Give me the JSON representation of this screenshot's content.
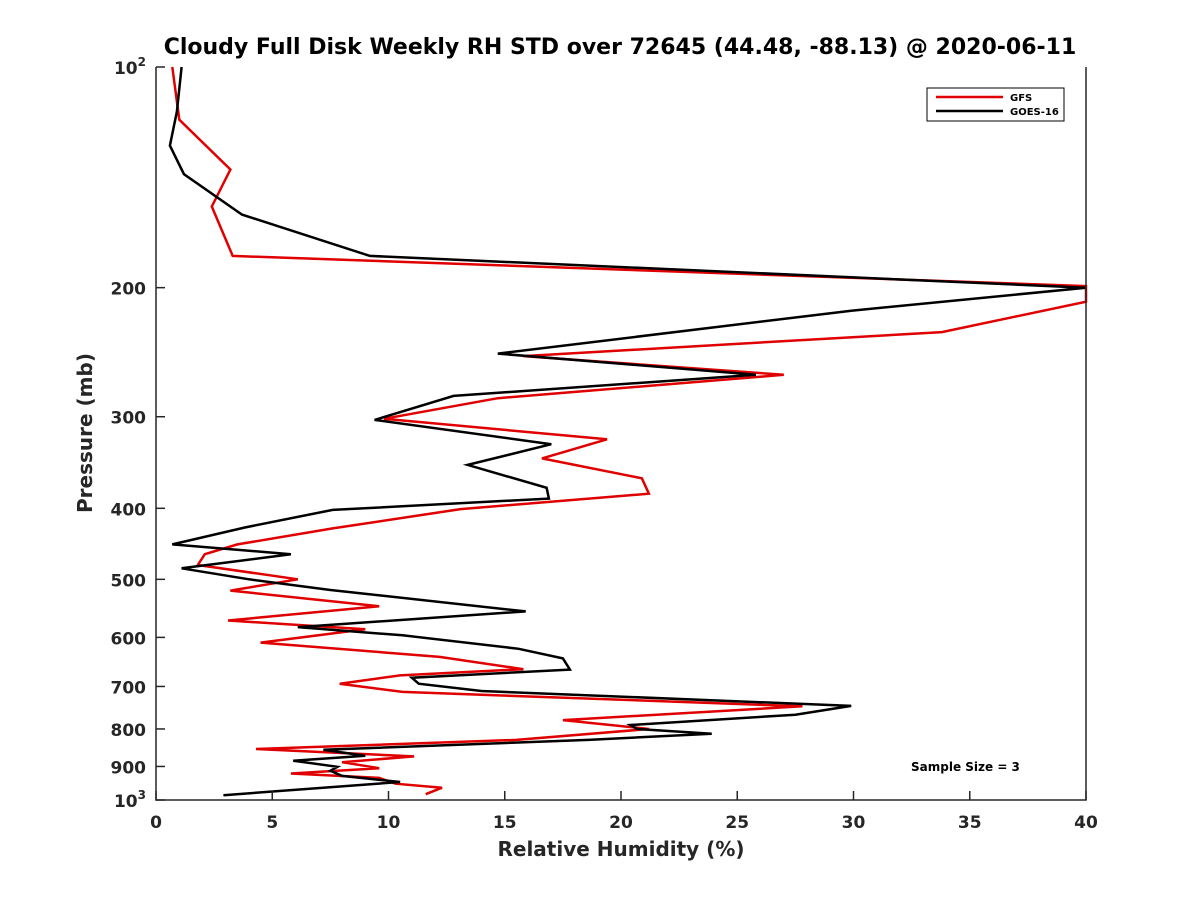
{
  "chart_data": {
    "type": "line",
    "title": "Cloudy Full Disk Weekly RH STD over 72645 (44.48, -88.13) @ 2020-06-11",
    "xlabel": "Relative Humidity (%)",
    "ylabel": "Pressure (mb)",
    "xlim": [
      0,
      40
    ],
    "ylim": [
      100,
      1000
    ],
    "y_scale": "log",
    "y_reversed": true,
    "grid": false,
    "legend_position": "top-right",
    "x_ticks": [
      "0",
      "5",
      "10",
      "15",
      "20",
      "25",
      "30",
      "35",
      "40"
    ],
    "y_ticks": [
      {
        "value": 100,
        "base": "10",
        "exp": "2"
      },
      {
        "value": 200,
        "label": "200"
      },
      {
        "value": 300,
        "label": "300"
      },
      {
        "value": 400,
        "label": "400"
      },
      {
        "value": 500,
        "label": "500"
      },
      {
        "value": 600,
        "label": "600"
      },
      {
        "value": 700,
        "label": "700"
      },
      {
        "value": 800,
        "label": "800"
      },
      {
        "value": 900,
        "label": "900"
      },
      {
        "value": 1000,
        "base": "10",
        "exp": "3"
      }
    ],
    "annotation": "Sample Size = 3",
    "series": [
      {
        "name": "GFS",
        "color": "#e00000",
        "points": [
          [
            0.7,
            100
          ],
          [
            1.0,
            118
          ],
          [
            3.2,
            138
          ],
          [
            2.4,
            155
          ],
          [
            3.3,
            181
          ],
          [
            40.0,
            199
          ],
          [
            40.0,
            209
          ],
          [
            33.8,
            230
          ],
          [
            15.8,
            248
          ],
          [
            27.0,
            263
          ],
          [
            14.7,
            283
          ],
          [
            9.8,
            302
          ],
          [
            19.4,
            322
          ],
          [
            16.6,
            342
          ],
          [
            20.9,
            364
          ],
          [
            21.2,
            382
          ],
          [
            13.1,
            401
          ],
          [
            7.6,
            426
          ],
          [
            3.5,
            448
          ],
          [
            2.1,
            462
          ],
          [
            1.8,
            478
          ],
          [
            6.1,
            500
          ],
          [
            3.2,
            518
          ],
          [
            9.6,
            544
          ],
          [
            3.1,
            569
          ],
          [
            9.0,
            585
          ],
          [
            4.5,
            610
          ],
          [
            12.2,
            638
          ],
          [
            15.8,
            663
          ],
          [
            10.5,
            676
          ],
          [
            7.9,
            694
          ],
          [
            10.6,
            712
          ],
          [
            27.8,
            745
          ],
          [
            17.5,
            778
          ],
          [
            21.2,
            800
          ],
          [
            15.5,
            828
          ],
          [
            4.3,
            852
          ],
          [
            11.1,
            872
          ],
          [
            8.0,
            888
          ],
          [
            9.6,
            905
          ],
          [
            5.8,
            920
          ],
          [
            9.6,
            933
          ],
          [
            10.3,
            950
          ],
          [
            12.3,
            962
          ],
          [
            11.6,
            982
          ]
        ]
      },
      {
        "name": "GOES-16",
        "color": "#000000",
        "points": [
          [
            1.1,
            100
          ],
          [
            0.9,
            115
          ],
          [
            0.6,
            128
          ],
          [
            1.2,
            140
          ],
          [
            3.7,
            159
          ],
          [
            9.2,
            181
          ],
          [
            40.0,
            200
          ],
          [
            29.9,
            215
          ],
          [
            14.7,
            246
          ],
          [
            25.8,
            263
          ],
          [
            12.8,
            281
          ],
          [
            9.4,
            303
          ],
          [
            17.0,
            327
          ],
          [
            13.4,
            349
          ],
          [
            16.8,
            375
          ],
          [
            16.9,
            388
          ],
          [
            7.6,
            402
          ],
          [
            3.8,
            425
          ],
          [
            0.7,
            448
          ],
          [
            5.8,
            462
          ],
          [
            1.1,
            483
          ],
          [
            4.0,
            500
          ],
          [
            7.5,
            517
          ],
          [
            15.9,
            553
          ],
          [
            6.1,
            581
          ],
          [
            10.6,
            596
          ],
          [
            15.6,
            622
          ],
          [
            17.5,
            641
          ],
          [
            17.8,
            664
          ],
          [
            11.0,
            681
          ],
          [
            11.3,
            694
          ],
          [
            14.0,
            710
          ],
          [
            29.9,
            744
          ],
          [
            27.5,
            765
          ],
          [
            20.4,
            790
          ],
          [
            20.7,
            800
          ],
          [
            23.9,
            812
          ],
          [
            18.6,
            828
          ],
          [
            7.2,
            854
          ],
          [
            9.0,
            870
          ],
          [
            5.9,
            884
          ],
          [
            7.8,
            901
          ],
          [
            7.5,
            912
          ],
          [
            8.0,
            927
          ],
          [
            10.5,
            945
          ],
          [
            2.9,
            985
          ]
        ]
      }
    ]
  }
}
